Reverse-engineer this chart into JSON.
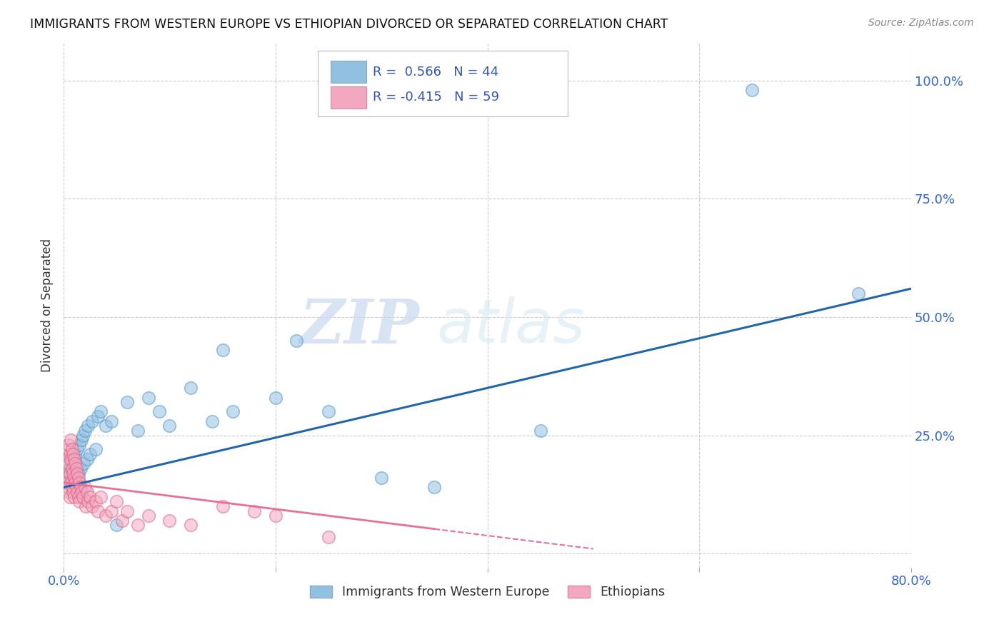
{
  "title": "IMMIGRANTS FROM WESTERN EUROPE VS ETHIOPIAN DIVORCED OR SEPARATED CORRELATION CHART",
  "source": "Source: ZipAtlas.com",
  "ylabel": "Divorced or Separated",
  "xlim": [
    0.0,
    80.0
  ],
  "ylim": [
    -3.0,
    108.0
  ],
  "blue_R": "0.566",
  "blue_N": "44",
  "pink_R": "-0.415",
  "pink_N": "59",
  "blue_color": "#92c0e0",
  "pink_color": "#f4a8c0",
  "blue_line_color": "#2166ac",
  "pink_line_color": "#e87098",
  "legend_label_blue": "Immigrants from Western Europe",
  "legend_label_pink": "Ethiopians",
  "watermark_zip": "ZIP",
  "watermark_atlas": "atlas",
  "background_color": "#ffffff",
  "blue_line_x0": 0.0,
  "blue_line_y0": 14.0,
  "blue_line_x1": 80.0,
  "blue_line_y1": 56.0,
  "pink_line_x0": 0.0,
  "pink_line_y0": 15.0,
  "pink_line_x1": 50.0,
  "pink_line_y1": 1.0,
  "pink_solid_end": 35.0,
  "pink_dashed_start": 35.0,
  "pink_dashed_end": 50.0,
  "blue_scatter": [
    [
      0.3,
      16.5
    ],
    [
      0.5,
      17.0
    ],
    [
      0.6,
      18.0
    ],
    [
      0.7,
      19.5
    ],
    [
      0.8,
      14.0
    ],
    [
      0.9,
      20.0
    ],
    [
      1.0,
      15.0
    ],
    [
      1.1,
      21.0
    ],
    [
      1.2,
      16.5
    ],
    [
      1.3,
      22.0
    ],
    [
      1.4,
      17.0
    ],
    [
      1.5,
      23.0
    ],
    [
      1.6,
      18.0
    ],
    [
      1.7,
      24.0
    ],
    [
      1.8,
      25.0
    ],
    [
      1.9,
      19.0
    ],
    [
      2.0,
      26.0
    ],
    [
      2.2,
      20.0
    ],
    [
      2.3,
      27.0
    ],
    [
      2.5,
      21.0
    ],
    [
      2.7,
      28.0
    ],
    [
      3.0,
      22.0
    ],
    [
      3.2,
      29.0
    ],
    [
      3.5,
      30.0
    ],
    [
      4.0,
      27.0
    ],
    [
      4.5,
      28.0
    ],
    [
      5.0,
      6.0
    ],
    [
      6.0,
      32.0
    ],
    [
      7.0,
      26.0
    ],
    [
      8.0,
      33.0
    ],
    [
      9.0,
      30.0
    ],
    [
      10.0,
      27.0
    ],
    [
      12.0,
      35.0
    ],
    [
      14.0,
      28.0
    ],
    [
      15.0,
      43.0
    ],
    [
      16.0,
      30.0
    ],
    [
      20.0,
      33.0
    ],
    [
      22.0,
      45.0
    ],
    [
      25.0,
      30.0
    ],
    [
      30.0,
      16.0
    ],
    [
      35.0,
      14.0
    ],
    [
      45.0,
      26.0
    ],
    [
      65.0,
      98.0
    ],
    [
      75.0,
      55.0
    ]
  ],
  "pink_scatter": [
    [
      0.1,
      17.0
    ],
    [
      0.2,
      16.0
    ],
    [
      0.3,
      15.0
    ],
    [
      0.3,
      20.0
    ],
    [
      0.4,
      14.0
    ],
    [
      0.4,
      22.0
    ],
    [
      0.5,
      13.0
    ],
    [
      0.5,
      19.0
    ],
    [
      0.5,
      23.0
    ],
    [
      0.6,
      12.0
    ],
    [
      0.6,
      17.0
    ],
    [
      0.6,
      21.0
    ],
    [
      0.7,
      15.0
    ],
    [
      0.7,
      20.0
    ],
    [
      0.7,
      24.0
    ],
    [
      0.8,
      14.0
    ],
    [
      0.8,
      18.0
    ],
    [
      0.8,
      22.0
    ],
    [
      0.9,
      13.0
    ],
    [
      0.9,
      17.0
    ],
    [
      0.9,
      21.0
    ],
    [
      1.0,
      12.0
    ],
    [
      1.0,
      16.0
    ],
    [
      1.0,
      20.0
    ],
    [
      1.1,
      15.0
    ],
    [
      1.1,
      19.0
    ],
    [
      1.2,
      14.0
    ],
    [
      1.2,
      18.0
    ],
    [
      1.3,
      13.0
    ],
    [
      1.3,
      17.0
    ],
    [
      1.4,
      12.0
    ],
    [
      1.4,
      16.0
    ],
    [
      1.5,
      15.0
    ],
    [
      1.5,
      11.0
    ],
    [
      1.6,
      14.0
    ],
    [
      1.7,
      13.0
    ],
    [
      1.8,
      12.0
    ],
    [
      2.0,
      14.0
    ],
    [
      2.1,
      10.0
    ],
    [
      2.2,
      13.0
    ],
    [
      2.3,
      11.0
    ],
    [
      2.5,
      12.0
    ],
    [
      2.7,
      10.0
    ],
    [
      3.0,
      11.0
    ],
    [
      3.2,
      9.0
    ],
    [
      3.5,
      12.0
    ],
    [
      4.0,
      8.0
    ],
    [
      4.5,
      9.0
    ],
    [
      5.0,
      11.0
    ],
    [
      5.5,
      7.0
    ],
    [
      6.0,
      9.0
    ],
    [
      7.0,
      6.0
    ],
    [
      8.0,
      8.0
    ],
    [
      10.0,
      7.0
    ],
    [
      12.0,
      6.0
    ],
    [
      15.0,
      10.0
    ],
    [
      18.0,
      9.0
    ],
    [
      20.0,
      8.0
    ],
    [
      25.0,
      3.5
    ]
  ]
}
